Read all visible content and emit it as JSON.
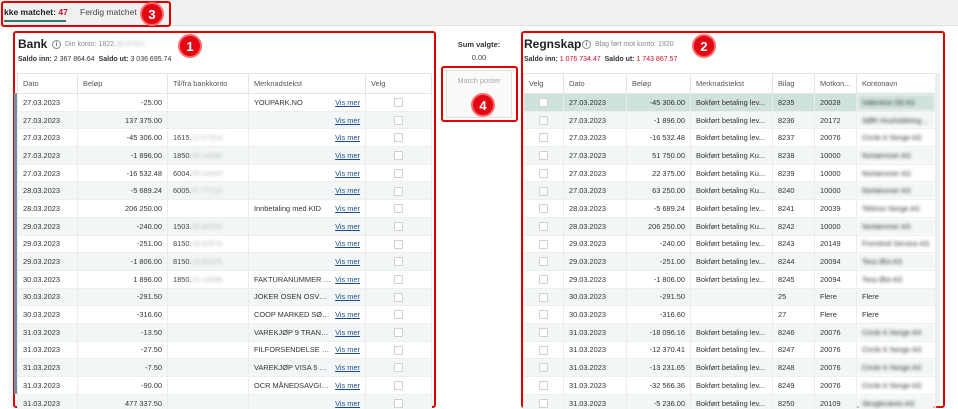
{
  "tabs": [
    {
      "label": "kke matchet:",
      "count": "47"
    },
    {
      "label": "Ferdig matchet"
    }
  ],
  "badges": [
    "1",
    "2",
    "3",
    "4"
  ],
  "bank": {
    "title": "Bank",
    "konto_label": "Din konto: 1822.",
    "konto_blur": "36.47001",
    "saldo_inn_label": "Saldo inn:",
    "saldo_inn": "2 367 864.64",
    "saldo_ut_label": "Saldo ut:",
    "saldo_ut": "3 036 695.74",
    "columns": [
      "Dato",
      "Beløp",
      "Til/fra bankkonto",
      "Merknadstekst",
      "Velg"
    ],
    "link_label": "Vis mer",
    "rows": [
      {
        "dato": "27.03.2023",
        "belop": "-25.00",
        "acct": "",
        "acct_blur": "",
        "merk": "YOUPARK.NO",
        "link": true
      },
      {
        "dato": "27.03.2023",
        "belop": "137 375.00",
        "acct": "",
        "acct_blur": "",
        "merk": "",
        "link": true
      },
      {
        "dato": "27.03.2023",
        "belop": "-45 306.00",
        "acct": "1615.",
        "acct_blur": "22.07914",
        "merk": "",
        "link": true
      },
      {
        "dato": "27.03.2023",
        "belop": "-1 896.00",
        "acct": "1850.",
        "acct_blur": "15.14086",
        "merk": "",
        "link": true
      },
      {
        "dato": "27.03.2023",
        "belop": "-16 532.48",
        "acct": "6004.",
        "acct_blur": "05.04349",
        "merk": "",
        "link": true
      },
      {
        "dato": "28.03.2023",
        "belop": "-5 689.24",
        "acct": "6005.",
        "acct_blur": "07.77122",
        "merk": "",
        "link": true
      },
      {
        "dato": "28.03.2023",
        "belop": "206 250.00",
        "acct": "",
        "acct_blur": "",
        "merk": "Innbetaling med KID",
        "link": true
      },
      {
        "dato": "29.03.2023",
        "belop": "-240.00",
        "acct": "1503.",
        "acct_blur": "25.40556",
        "merk": "",
        "link": true
      },
      {
        "dato": "29.03.2023",
        "belop": "-251.00",
        "acct": "8150.",
        "acct_blur": "16.62976",
        "merk": "",
        "link": true
      },
      {
        "dato": "29.03.2023",
        "belop": "-1 806.00",
        "acct": "8150.",
        "acct_blur": "16.62976",
        "merk": "",
        "link": true
      },
      {
        "dato": "30.03.2023",
        "belop": "1 896.00",
        "acct": "1850.",
        "acct_blur": "15.14086",
        "merk": "FAKTURANUMMER BEL...",
        "link": true
      },
      {
        "dato": "30.03.2023",
        "belop": "-291.50",
        "acct": "",
        "acct_blur": "",
        "merk": "JOKER OSEN OSVEGEN 2...",
        "link": true
      },
      {
        "dato": "30.03.2023",
        "belop": "-316.60",
        "acct": "",
        "acct_blur": "",
        "merk": "COOP MARKED SØR OSE...",
        "link": true
      },
      {
        "dato": "31.03.2023",
        "belop": "-13.50",
        "acct": "",
        "acct_blur": "",
        "merk": "VAREKJØP 9 TRANS(ER) T...",
        "link": true
      },
      {
        "dato": "31.03.2023",
        "belop": "-27.50",
        "acct": "",
        "acct_blur": "",
        "merk": "FILFORSENDELSE FRA N...",
        "link": true
      },
      {
        "dato": "31.03.2023",
        "belop": "-7.50",
        "acct": "",
        "acct_blur": "",
        "merk": "VAREKJØP VISA 5 TRANS(...",
        "link": true
      },
      {
        "dato": "31.03.2023",
        "belop": "-90.00",
        "acct": "",
        "acct_blur": "",
        "merk": "OCR MÅNEDSAVGIFT 1 T...",
        "link": true
      },
      {
        "dato": "31.03.2023",
        "belop": "477 337.50",
        "acct": "",
        "acct_blur": "",
        "merk": "",
        "link": true
      }
    ]
  },
  "middle": {
    "sum_label": "Sum valgte:",
    "sum_value": "0.00",
    "match_button": "Match poster"
  },
  "regnskap": {
    "title": "Regnskap",
    "konto_label": "Blag ført mot konto: 1920",
    "saldo_inn_label": "Saldo inn:",
    "saldo_inn": "1 076 734.47",
    "saldo_ut_label": "Saldo ut:",
    "saldo_ut": "1 743 867.57",
    "columns": [
      "Velg",
      "Dato",
      "Beløp",
      "Merknadstekst",
      "Bilag",
      "Motkon...",
      "Kontonavn"
    ],
    "rows": [
      {
        "dato": "27.03.2023",
        "belop": "-45 306.00",
        "merk": "Bokført betaling lev...",
        "bilag": "8235",
        "motkonto": "20028",
        "kontonavn": "Valentine Oil AS",
        "selected": true
      },
      {
        "dato": "27.03.2023",
        "belop": "-1 896.00",
        "merk": "Bokført betaling lev...",
        "bilag": "8236",
        "motkonto": "20172",
        "kontonavn": "SØR Husholdning AS"
      },
      {
        "dato": "27.03.2023",
        "belop": "-16 532.48",
        "merk": "Bokført betaling lev...",
        "bilag": "8237",
        "motkonto": "20076",
        "kontonavn": "Circle K Norge AS"
      },
      {
        "dato": "27.03.2023",
        "belop": "51 750.00",
        "merk": "Bokført betaling Ku...",
        "bilag": "8238",
        "motkonto": "10000",
        "kontonavn": "Nortømmer AS"
      },
      {
        "dato": "27.03.2023",
        "belop": "22 375.00",
        "merk": "Bokført betaling Ku...",
        "bilag": "8239",
        "motkonto": "10000",
        "kontonavn": "Nortømmer AS"
      },
      {
        "dato": "27.03.2023",
        "belop": "63 250.00",
        "merk": "Bokført betaling Ku...",
        "bilag": "8240",
        "motkonto": "10000",
        "kontonavn": "Nortømmer AS"
      },
      {
        "dato": "28.03.2023",
        "belop": "-5 689.24",
        "merk": "Bokført betaling lev...",
        "bilag": "8241",
        "motkonto": "20039",
        "kontonavn": "Telenor Norge AS"
      },
      {
        "dato": "28.03.2023",
        "belop": "206 250.00",
        "merk": "Bokført betaling Ku...",
        "bilag": "8242",
        "motkonto": "10000",
        "kontonavn": "Nortømmer AS"
      },
      {
        "dato": "29.03.2023",
        "belop": "-240.00",
        "merk": "Bokført betaling lev...",
        "bilag": "8243",
        "motkonto": "20149",
        "kontonavn": "Fremtind Service AS"
      },
      {
        "dato": "29.03.2023",
        "belop": "-251.00",
        "merk": "Bokført betaling lev...",
        "bilag": "8244",
        "motkonto": "20094",
        "kontonavn": "Tess Øst AS"
      },
      {
        "dato": "29.03.2023",
        "belop": "-1 806.00",
        "merk": "Bokført betaling lev...",
        "bilag": "8245",
        "motkonto": "20094",
        "kontonavn": "Tess Øst AS"
      },
      {
        "dato": "30.03.2023",
        "belop": "-291.50",
        "merk": "",
        "bilag": "25",
        "motkonto": "Flere",
        "kontonavn": "Flere"
      },
      {
        "dato": "30.03.2023",
        "belop": "-316.60",
        "merk": "",
        "bilag": "27",
        "motkonto": "Flere",
        "kontonavn": "Flere"
      },
      {
        "dato": "31.03.2023",
        "belop": "-18 096.16",
        "merk": "Bokført betaling lev...",
        "bilag": "8246",
        "motkonto": "20076",
        "kontonavn": "Circle K Norge AS"
      },
      {
        "dato": "31.03.2023",
        "belop": "-12 370.41",
        "merk": "Bokført betaling lev...",
        "bilag": "8247",
        "motkonto": "20076",
        "kontonavn": "Circle K Norge AS"
      },
      {
        "dato": "31.03.2023",
        "belop": "-13 231.65",
        "merk": "Bokført betaling lev...",
        "bilag": "8248",
        "motkonto": "20076",
        "kontonavn": "Circle K Norge AS"
      },
      {
        "dato": "31.03.2023",
        "belop": "-32 566.36",
        "merk": "Bokført betaling lev...",
        "bilag": "8249",
        "motkonto": "20076",
        "kontonavn": "Circle K Norge AS"
      },
      {
        "dato": "31.03.2023",
        "belop": "-5 236.00",
        "merk": "Bokført betaling lev...",
        "bilag": "8250",
        "motkonto": "20109",
        "kontonavn": "Skogbrukets AS"
      }
    ]
  }
}
